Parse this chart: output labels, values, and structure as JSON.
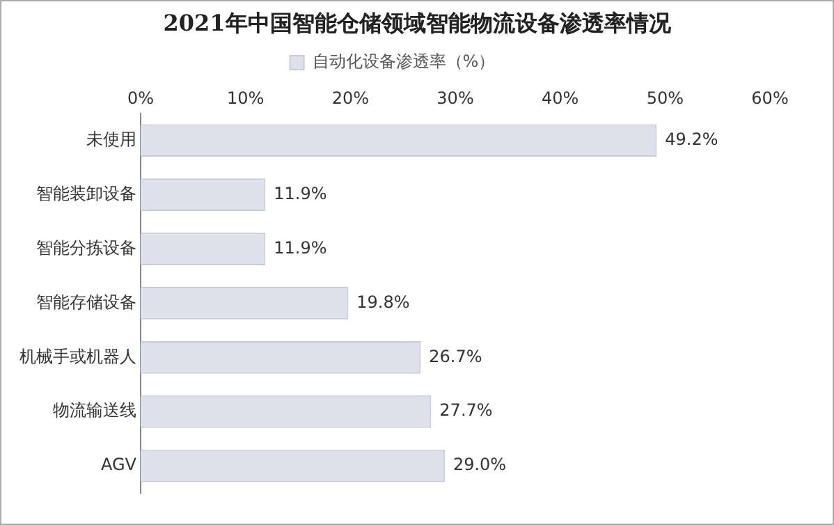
{
  "chart_data": {
    "type": "bar",
    "orientation": "horizontal",
    "title": "2021年中国智能仓储领域智能物流设备渗透率情况",
    "categories": [
      "未使用",
      "智能装卸设备",
      "智能分拣设备",
      "智能存储设备",
      "机械手或机器人",
      "物流输送线",
      "AGV"
    ],
    "series": [
      {
        "name": "自动化设备渗透率（%）",
        "color": "#dfe1ea",
        "values": [
          49.2,
          11.9,
          11.9,
          19.8,
          26.7,
          27.7,
          29.0
        ],
        "value_labels": [
          "49.2%",
          "11.9%",
          "11.9%",
          "19.8%",
          "26.7%",
          "27.7%",
          "29.0%"
        ]
      }
    ],
    "xlim": [
      0,
      60
    ],
    "xticks": [
      {
        "value": 0,
        "label": "0%"
      },
      {
        "value": 10,
        "label": "10%"
      },
      {
        "value": 20,
        "label": "20%"
      },
      {
        "value": 30,
        "label": "30%"
      },
      {
        "value": 40,
        "label": "40%"
      },
      {
        "value": 50,
        "label": "50%"
      },
      {
        "value": 60,
        "label": "60%"
      }
    ],
    "grid": false,
    "legend": "top"
  }
}
